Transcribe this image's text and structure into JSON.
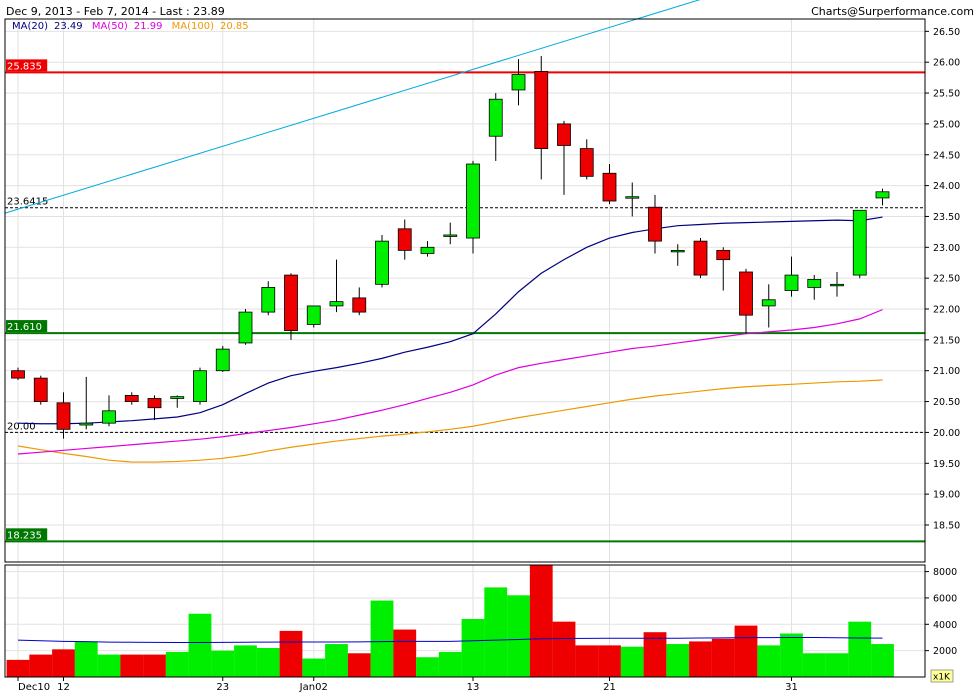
{
  "header": {
    "title": "Dec 9, 2013 - Feb 7, 2014 - Last : 23.89",
    "credit": "Charts@Surperformance.com"
  },
  "legend": {
    "ma20_label": "MA(20)",
    "ma20_value": "23.49",
    "ma50_label": "MA(50)",
    "ma50_value": "21.99",
    "ma100_label": "MA(100)",
    "ma100_value": "20.85"
  },
  "volume_unit": "x1K",
  "colors": {
    "up": "#00ee00",
    "down": "#ee0000",
    "ma20": "#000080",
    "ma50": "#dd00dd",
    "ma100": "#ee9900",
    "trend": "#00aadd",
    "volume_avg": "#0000cc"
  },
  "chart_data": {
    "type": "candlestick",
    "ylim": [
      17.9,
      26.7
    ],
    "y_ticks": [
      "18.50",
      "19.00",
      "19.50",
      "20.00",
      "20.50",
      "21.00",
      "21.50",
      "22.00",
      "22.50",
      "23.00",
      "23.50",
      "24.00",
      "24.50",
      "25.00",
      "25.50",
      "26.00",
      "26.50"
    ],
    "x_ticks": [
      {
        "label": "Dec10",
        "index": 0
      },
      {
        "label": "12",
        "index": 2
      },
      {
        "label": "23",
        "index": 9
      },
      {
        "label": "Jan02",
        "index": 13
      },
      {
        "label": "13",
        "index": 20
      },
      {
        "label": "21",
        "index": 26
      },
      {
        "label": "31",
        "index": 34
      }
    ],
    "candles": [
      {
        "o": 21.0,
        "h": 21.05,
        "l": 20.85,
        "c": 20.88
      },
      {
        "o": 20.88,
        "h": 20.92,
        "l": 20.45,
        "c": 20.5
      },
      {
        "o": 20.48,
        "h": 20.65,
        "l": 19.9,
        "c": 20.05
      },
      {
        "o": 20.12,
        "h": 20.9,
        "l": 20.05,
        "c": 20.15
      },
      {
        "o": 20.15,
        "h": 20.6,
        "l": 20.1,
        "c": 20.35
      },
      {
        "o": 20.6,
        "h": 20.65,
        "l": 20.45,
        "c": 20.5
      },
      {
        "o": 20.55,
        "h": 20.6,
        "l": 20.2,
        "c": 20.4
      },
      {
        "o": 20.55,
        "h": 20.6,
        "l": 20.4,
        "c": 20.58
      },
      {
        "o": 20.5,
        "h": 21.05,
        "l": 20.45,
        "c": 21.0
      },
      {
        "o": 21.0,
        "h": 21.4,
        "l": 20.98,
        "c": 21.35
      },
      {
        "o": 21.45,
        "h": 22.0,
        "l": 21.42,
        "c": 21.95
      },
      {
        "o": 21.95,
        "h": 22.45,
        "l": 21.9,
        "c": 22.35
      },
      {
        "o": 22.55,
        "h": 22.58,
        "l": 21.5,
        "c": 21.65
      },
      {
        "o": 21.75,
        "h": 22.05,
        "l": 21.7,
        "c": 22.05
      },
      {
        "o": 22.05,
        "h": 22.8,
        "l": 21.95,
        "c": 22.12
      },
      {
        "o": 22.18,
        "h": 22.35,
        "l": 21.9,
        "c": 21.95
      },
      {
        "o": 22.4,
        "h": 23.2,
        "l": 22.35,
        "c": 23.1
      },
      {
        "o": 23.3,
        "h": 23.45,
        "l": 22.8,
        "c": 22.95
      },
      {
        "o": 22.9,
        "h": 23.1,
        "l": 22.85,
        "c": 23.0
      },
      {
        "o": 23.2,
        "h": 23.4,
        "l": 23.05,
        "c": 23.2
      },
      {
        "o": 23.15,
        "h": 24.4,
        "l": 22.9,
        "c": 24.35
      },
      {
        "o": 24.8,
        "h": 25.5,
        "l": 24.4,
        "c": 25.4
      },
      {
        "o": 25.55,
        "h": 26.05,
        "l": 25.3,
        "c": 25.8
      },
      {
        "o": 25.85,
        "h": 26.1,
        "l": 24.1,
        "c": 24.6
      },
      {
        "o": 25.0,
        "h": 25.05,
        "l": 23.85,
        "c": 24.65
      },
      {
        "o": 24.6,
        "h": 24.75,
        "l": 24.1,
        "c": 24.15
      },
      {
        "o": 24.2,
        "h": 24.35,
        "l": 23.7,
        "c": 23.75
      },
      {
        "o": 23.82,
        "h": 24.05,
        "l": 23.5,
        "c": 23.82
      },
      {
        "o": 23.65,
        "h": 23.85,
        "l": 22.9,
        "c": 23.1
      },
      {
        "o": 22.95,
        "h": 23.05,
        "l": 22.7,
        "c": 22.95
      },
      {
        "o": 23.1,
        "h": 23.15,
        "l": 22.5,
        "c": 22.55
      },
      {
        "o": 22.95,
        "h": 23.0,
        "l": 22.3,
        "c": 22.8
      },
      {
        "o": 22.6,
        "h": 22.65,
        "l": 21.6,
        "c": 21.9
      },
      {
        "o": 22.05,
        "h": 22.4,
        "l": 21.7,
        "c": 22.15
      },
      {
        "o": 22.3,
        "h": 22.85,
        "l": 22.2,
        "c": 22.55
      },
      {
        "o": 22.35,
        "h": 22.55,
        "l": 22.15,
        "c": 22.48
      },
      {
        "o": 22.38,
        "h": 22.6,
        "l": 22.2,
        "c": 22.4
      },
      {
        "o": 22.55,
        "h": 23.6,
        "l": 22.5,
        "c": 23.6
      },
      {
        "o": 23.8,
        "h": 23.95,
        "l": 23.68,
        "c": 23.9
      }
    ],
    "ma20": [
      20.15,
      20.14,
      20.14,
      20.15,
      20.17,
      20.19,
      20.22,
      20.25,
      20.32,
      20.45,
      20.63,
      20.8,
      20.92,
      20.99,
      21.05,
      21.12,
      21.2,
      21.3,
      21.38,
      21.47,
      21.6,
      21.92,
      22.28,
      22.58,
      22.8,
      23.0,
      23.15,
      23.24,
      23.3,
      23.35,
      23.37,
      23.39,
      23.4,
      23.41,
      23.42,
      23.43,
      23.44,
      23.43,
      23.49
    ],
    "ma50": [
      19.65,
      19.68,
      19.71,
      19.74,
      19.77,
      19.8,
      19.83,
      19.86,
      19.89,
      19.93,
      19.98,
      20.03,
      20.08,
      20.14,
      20.2,
      20.28,
      20.36,
      20.45,
      20.55,
      20.65,
      20.77,
      20.93,
      21.05,
      21.12,
      21.18,
      21.24,
      21.3,
      21.36,
      21.4,
      21.45,
      21.5,
      21.55,
      21.6,
      21.63,
      21.66,
      21.7,
      21.76,
      21.84,
      21.99
    ],
    "ma100": [
      19.78,
      19.72,
      19.66,
      19.61,
      19.55,
      19.52,
      19.52,
      19.53,
      19.55,
      19.58,
      19.63,
      19.7,
      19.76,
      19.81,
      19.86,
      19.9,
      19.94,
      19.97,
      20.01,
      20.05,
      20.1,
      20.17,
      20.24,
      20.3,
      20.36,
      20.42,
      20.48,
      20.54,
      20.59,
      20.63,
      20.67,
      20.71,
      20.74,
      20.76,
      20.78,
      20.8,
      20.82,
      20.83,
      20.85
    ],
    "horizontal_lines": [
      {
        "value": 25.835,
        "label": "25.835",
        "color": "#ee0000",
        "style": "solid"
      },
      {
        "value": 23.6415,
        "label": "23.6415",
        "color": "#000000",
        "style": "dashed"
      },
      {
        "value": 21.61,
        "label": "21.610",
        "color": "#007700",
        "style": "solid"
      },
      {
        "value": 20.0,
        "label": "20.00",
        "color": "#000000",
        "style": "dashed"
      },
      {
        "value": 18.235,
        "label": "18.235",
        "color": "#007700",
        "style": "solid"
      }
    ],
    "trendline": {
      "start": {
        "index": -0.6,
        "value": 23.55
      },
      "end": {
        "index": 32.5,
        "value": 27.3
      }
    },
    "volume": {
      "ylim": [
        0,
        8500
      ],
      "y_ticks": [
        "2000",
        "4000",
        "6000",
        "8000"
      ],
      "values": [
        1300,
        1700,
        2100,
        2700,
        1700,
        1700,
        1700,
        1900,
        4800,
        2000,
        2400,
        2200,
        3500,
        1400,
        2500,
        1800,
        5800,
        3600,
        1500,
        1900,
        4400,
        6800,
        6200,
        8500,
        4200,
        2400,
        2400,
        2300,
        3400,
        2500,
        2700,
        2900,
        3900,
        2400,
        3300,
        1800,
        1800,
        4200,
        2500
      ],
      "average": [
        2800,
        2750,
        2700,
        2680,
        2650,
        2640,
        2630,
        2620,
        2620,
        2630,
        2640,
        2650,
        2660,
        2660,
        2660,
        2670,
        2680,
        2700,
        2700,
        2700,
        2750,
        2800,
        2850,
        2900,
        2920,
        2930,
        2940,
        2940,
        2940,
        2940,
        2960,
        2970,
        2990,
        2990,
        3000,
        3000,
        2980,
        2960,
        2950
      ]
    }
  }
}
